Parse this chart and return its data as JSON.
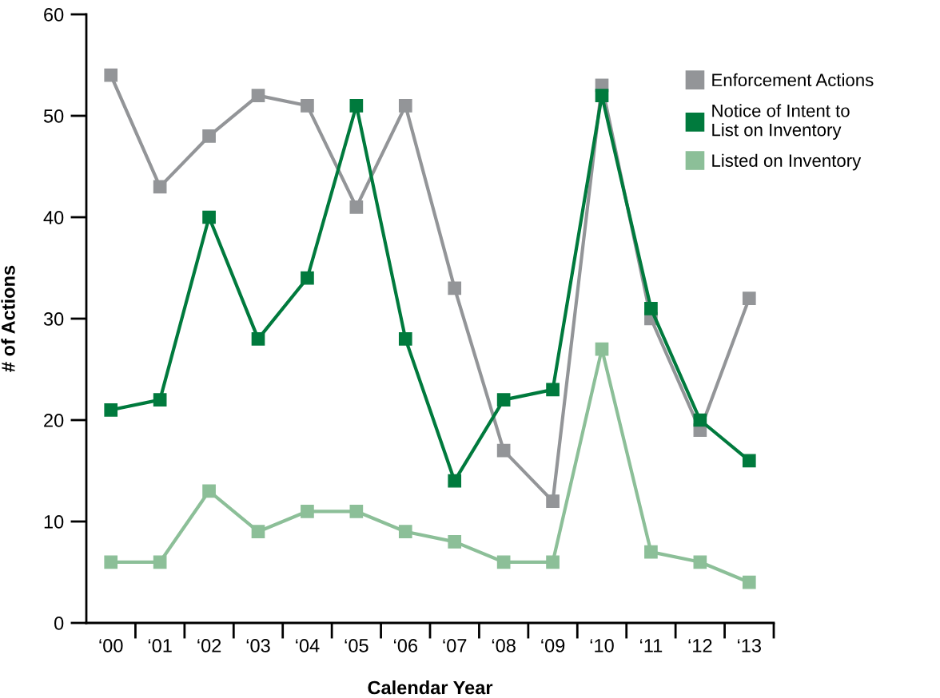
{
  "chart_data": {
    "type": "line",
    "xlabel": "Calendar Year",
    "ylabel": "# of Actions",
    "categories": [
      "‘00",
      "‘01",
      "‘02",
      "‘03",
      "‘04",
      "‘05",
      "‘06",
      "‘07",
      "‘08",
      "‘09",
      "‘10",
      "‘11",
      "‘12",
      "‘13"
    ],
    "series": [
      {
        "name": "Enforcement Actions",
        "color": "#939598",
        "values": [
          54,
          43,
          48,
          52,
          51,
          41,
          51,
          33,
          17,
          12,
          53,
          30,
          19,
          32
        ]
      },
      {
        "name": "Notice of Intent to\nList on Inventory",
        "color": "#007a3d",
        "values": [
          21,
          22,
          40,
          28,
          34,
          51,
          28,
          14,
          22,
          23,
          52,
          31,
          20,
          16
        ]
      },
      {
        "name": "Listed on Inventory",
        "color": "#8cbf98",
        "values": [
          6,
          6,
          13,
          9,
          11,
          11,
          9,
          8,
          6,
          6,
          27,
          7,
          6,
          4
        ]
      }
    ],
    "ylim": [
      0,
      60
    ],
    "yticks": [
      0,
      10,
      20,
      30,
      40,
      50,
      60
    ],
    "grid": false,
    "legend": "top right",
    "marker": "square",
    "line_style": "solid"
  }
}
